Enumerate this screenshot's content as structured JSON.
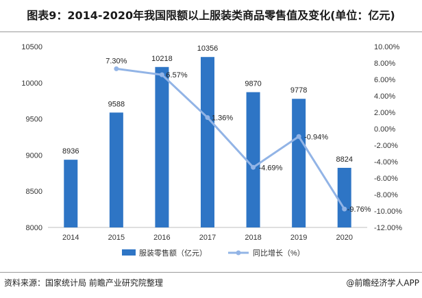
{
  "title": "图表9：2014-2020年我国限额以上服装类商品零售值及变化(单位：亿元)",
  "footer": {
    "source": "资料来源：国家统计局 前瞻产业研究院整理",
    "brand": "@前瞻经济学人APP"
  },
  "chart_data": {
    "type": "bar",
    "categories": [
      "2014",
      "2015",
      "2016",
      "2017",
      "2018",
      "2019",
      "2020"
    ],
    "series": [
      {
        "name": "服装零售额（亿元）",
        "type": "bar",
        "values": [
          8936,
          9588,
          10218,
          10356,
          9870,
          9778,
          8824
        ],
        "labels": [
          "8936",
          "9588",
          "10218",
          "10356",
          "9870",
          "9778",
          "8824"
        ],
        "color": "#2e75c5"
      },
      {
        "name": "同比增长（%）",
        "type": "line",
        "axis": "right",
        "values": [
          null,
          7.3,
          6.57,
          1.36,
          -4.69,
          -0.94,
          -9.76
        ],
        "labels": [
          "",
          "7.30%",
          "6.57%",
          "1.36%",
          "-4.69%",
          "-0.94%",
          "-9.76%"
        ],
        "color": "#92b4e6"
      }
    ],
    "left_axis": {
      "min": 8000,
      "max": 10500,
      "step": 500,
      "ticks": [
        "8000",
        "8500",
        "9000",
        "9500",
        "10000",
        "10500"
      ]
    },
    "right_axis": {
      "min": -12,
      "max": 10,
      "step": 2,
      "ticks": [
        "-12.00%",
        "-10.00%",
        "-8.00%",
        "-6.00%",
        "-4.00%",
        "-2.00%",
        "0.00%",
        "2.00%",
        "4.00%",
        "6.00%",
        "8.00%",
        "10.00%"
      ]
    },
    "grid": false,
    "legend_position": "bottom"
  }
}
